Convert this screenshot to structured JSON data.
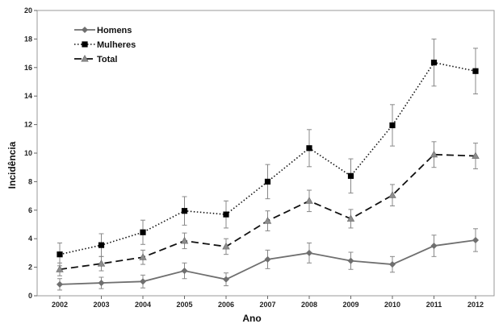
{
  "chart_data": {
    "type": "line",
    "xlabel": "Ano",
    "ylabel": "Incidência",
    "categories": [
      "2002",
      "2003",
      "2004",
      "2005",
      "2006",
      "2007",
      "2008",
      "2009",
      "2010",
      "2011",
      "2012"
    ],
    "ylim": [
      0,
      20
    ],
    "yticks": [
      0,
      2,
      4,
      6,
      8,
      10,
      12,
      14,
      16,
      18,
      20
    ],
    "grid": false,
    "legend_position": "top-left",
    "series": [
      {
        "name": "Homens",
        "marker": "diamond",
        "line_style": "solid",
        "color": "#7f7f7f",
        "values": [
          0.8,
          0.9,
          1.0,
          1.75,
          1.15,
          2.55,
          3.0,
          2.45,
          2.2,
          3.5,
          3.9
        ],
        "error": [
          0.4,
          0.4,
          0.45,
          0.55,
          0.45,
          0.65,
          0.7,
          0.6,
          0.55,
          0.75,
          0.8
        ]
      },
      {
        "name": "Mulheres",
        "marker": "square",
        "line_style": "dotted",
        "color": "#000000",
        "values": [
          2.9,
          3.55,
          4.45,
          5.95,
          5.7,
          8.0,
          10.35,
          8.4,
          11.95,
          16.35,
          15.75
        ],
        "error": [
          0.8,
          0.8,
          0.85,
          1.0,
          0.95,
          1.2,
          1.3,
          1.2,
          1.45,
          1.65,
          1.6
        ]
      },
      {
        "name": "Total",
        "marker": "triangle",
        "line_style": "dashed",
        "color": "#000000",
        "values": [
          1.85,
          2.25,
          2.7,
          3.85,
          3.45,
          5.25,
          6.65,
          5.4,
          7.05,
          9.9,
          9.8
        ],
        "error": [
          0.45,
          0.5,
          0.5,
          0.55,
          0.55,
          0.7,
          0.75,
          0.65,
          0.75,
          0.9,
          0.9
        ]
      }
    ]
  }
}
